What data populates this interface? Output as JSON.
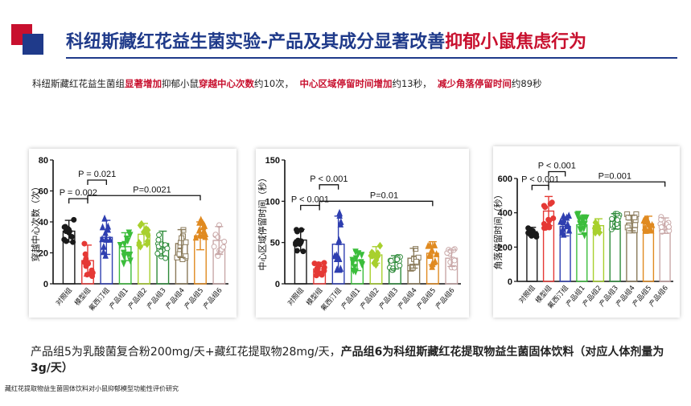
{
  "header": {
    "title_part1": "科纽斯藏红花益生菌实验-产品及其成分显著改善",
    "title_part2": "抑郁小鼠焦虑行为"
  },
  "subtitle": {
    "s1": "科纽斯藏红花益生菌组",
    "s2": "显著增加",
    "s3": "抑郁小鼠",
    "s4": "穿越中心次数",
    "s5": "约10次，",
    "s6": "中心区域停留时间增加",
    "s7": "约13秒，",
    "s8": "减少角落停留时间",
    "s9": "约89秒"
  },
  "bottom": {
    "line_normal": "产品组5为乳酸菌复合粉200mg/天+藏红花提取物28mg/天，",
    "line_bold": "产品组6为科纽斯藏红花提取物益生菌固体饮料（对应人体剂量为3g/天）"
  },
  "footnote": "藏红花提取物益生菌固体饮料对小鼠抑郁模型功能性评价研究",
  "colors": {
    "groups": [
      "#1a1a1a",
      "#e53935",
      "#2f3fb0",
      "#3bbd3b",
      "#a8d02e",
      "#2e8b3a",
      "#8a7a5a",
      "#e08a20",
      "#c9a8a8"
    ],
    "title_blue": "#1f3a8a",
    "accent_red": "#c8102e"
  },
  "chart_data": [
    {
      "type": "bar",
      "ylabel": "穿越中心次数（次）",
      "ylim": [
        0,
        80
      ],
      "yticks": [
        "0",
        "20",
        "40",
        "60",
        "80"
      ],
      "categories": [
        "对照组",
        "模型组",
        "氟西汀组",
        "产品组1",
        "产品组2",
        "产品组3",
        "产品组4",
        "产品组5",
        "产品组6"
      ],
      "values": [
        34,
        15,
        30,
        24,
        32,
        26,
        26,
        31,
        28
      ],
      "errors": [
        7,
        10,
        11,
        9,
        7,
        8,
        9,
        9,
        9
      ],
      "annotations": [
        {
          "text": "P = 0.002",
          "from": 0,
          "to": 1,
          "y": 55
        },
        {
          "text": "P = 0.021",
          "from": 1,
          "to": 2,
          "y": 67
        },
        {
          "text": "P=0.0021",
          "from": 1,
          "to": 7,
          "y": 57
        }
      ]
    },
    {
      "type": "bar",
      "ylabel": "中心区域停留时间（秒）",
      "ylim": [
        0,
        150
      ],
      "yticks": [
        "0",
        "50",
        "100",
        "150"
      ],
      "categories": [
        "对照组",
        "模型组",
        "氟西汀组",
        "产品组1",
        "产品组2",
        "产品组3",
        "产品组4",
        "产品组5",
        "产品组6"
      ],
      "values": [
        53,
        18,
        48,
        28,
        35,
        26,
        31,
        37,
        31
      ],
      "errors": [
        13,
        8,
        34,
        12,
        10,
        8,
        12,
        14,
        10
      ],
      "annotations": [
        {
          "text": "P < 0.001",
          "from": 0,
          "to": 1,
          "y": 95
        },
        {
          "text": "P < 0.001",
          "from": 1,
          "to": 2,
          "y": 120
        },
        {
          "text": "P=0.01",
          "from": 1,
          "to": 7,
          "y": 100
        }
      ]
    },
    {
      "type": "bar",
      "ylabel": "角落停留时间（秒）",
      "ylim": [
        0,
        600
      ],
      "yticks": [
        "0",
        "200",
        "400",
        "600"
      ],
      "categories": [
        "对照组",
        "模型组",
        "氟西汀组",
        "产品组1",
        "产品组2",
        "产品组3",
        "产品组4",
        "产品组5",
        "产品组6"
      ],
      "values": [
        290,
        410,
        320,
        330,
        325,
        350,
        340,
        335,
        325
      ],
      "errors": [
        25,
        85,
        55,
        55,
        40,
        45,
        45,
        45,
        45
      ],
      "annotations": [
        {
          "text": "P < 0.001",
          "from": 0,
          "to": 1,
          "y": 560
        },
        {
          "text": "P < 0.001",
          "from": 1,
          "to": 2,
          "y": 640
        },
        {
          "text": "P=0.001",
          "from": 1,
          "to": 8,
          "y": 580
        }
      ]
    }
  ]
}
